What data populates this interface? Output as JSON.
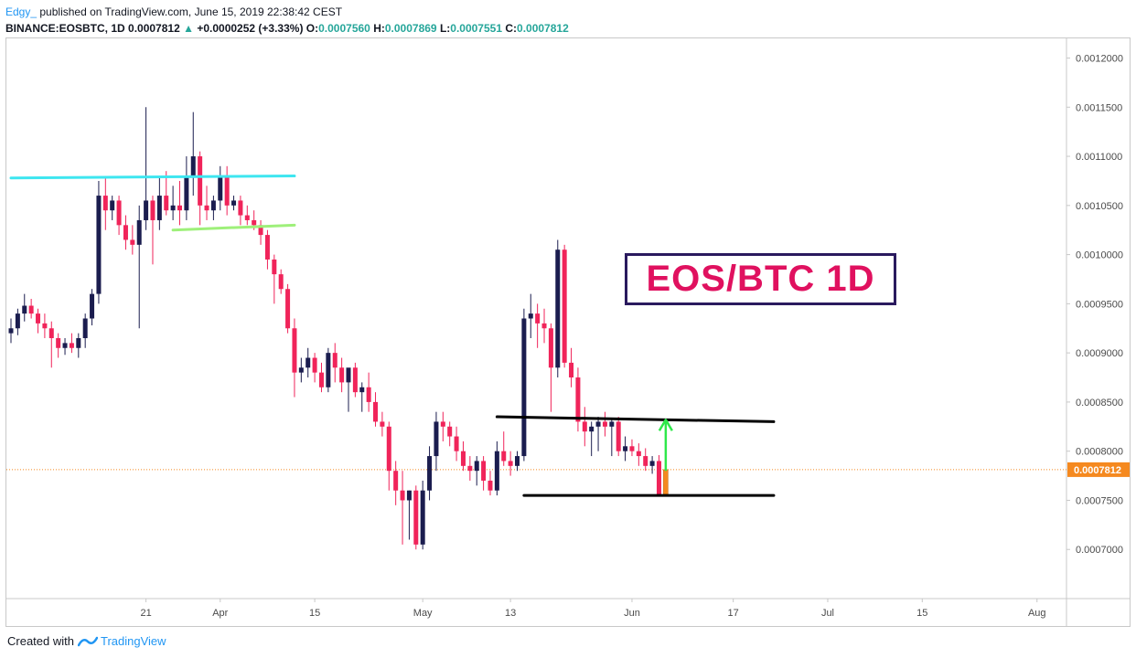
{
  "header": {
    "author": "Edgy_",
    "published": "published on TradingView.com, June 15, 2019 22:38:42 CEST",
    "symbol": "BINANCE:EOSBTC, 1D",
    "last": "0.0007812",
    "change": "+0.0000252 (+3.33%)",
    "o_label": "O:",
    "o_value": "0.0007560",
    "h_label": "H:",
    "h_value": "0.0007869",
    "l_label": "L:",
    "l_value": "0.0007551",
    "c_label": "C:",
    "c_value": "0.0007812"
  },
  "annotation_box": "EOS/BTC 1D",
  "footer": {
    "created_with": "Created with",
    "brand": "TradingView"
  },
  "colors": {
    "up_candle": "#1b1d4f",
    "down_candle": "#f0245a",
    "orange_candle": "#f5891f",
    "cyan_line": "#3ee6f0",
    "green_line": "#9ef07a",
    "black_line": "#000000",
    "green_arrow": "#2ee84a",
    "price_line": "#f5891f"
  },
  "chart_data": {
    "type": "candlestick",
    "y_ticks": [
      "0.0012000",
      "0.0011500",
      "0.0011000",
      "0.0010500",
      "0.0010000",
      "0.0009500",
      "0.0009000",
      "0.0008500",
      "0.0008000",
      "0.0007500",
      "0.0007000"
    ],
    "ylim": [
      0.00065,
      0.00122
    ],
    "x_ticks": [
      {
        "label": "21",
        "day": 20
      },
      {
        "label": "Apr",
        "day": 31
      },
      {
        "label": "15",
        "day": 45
      },
      {
        "label": "May",
        "day": 61
      },
      {
        "label": "13",
        "day": 74
      },
      {
        "label": "Jun",
        "day": 92
      },
      {
        "label": "17",
        "day": 107
      },
      {
        "label": "Jul",
        "day": 121
      },
      {
        "label": "15",
        "day": 135
      },
      {
        "label": "Aug",
        "day": 152
      }
    ],
    "current_price": "0.0007812",
    "candles": [
      [
        0.00092,
        0.000935,
        0.00091,
        0.000925
      ],
      [
        0.000925,
        0.000945,
        0.000918,
        0.00094
      ],
      [
        0.00094,
        0.00096,
        0.000932,
        0.000948
      ],
      [
        0.000948,
        0.000955,
        0.000935,
        0.00094
      ],
      [
        0.00094,
        0.000945,
        0.00092,
        0.00093
      ],
      [
        0.00093,
        0.00094,
        0.000915,
        0.000925
      ],
      [
        0.000925,
        0.000932,
        0.000885,
        0.000915
      ],
      [
        0.000915,
        0.00092,
        0.000895,
        0.000905
      ],
      [
        0.000905,
        0.000915,
        0.000898,
        0.00091
      ],
      [
        0.00091,
        0.00092,
        0.0009,
        0.000905
      ],
      [
        0.000905,
        0.00092,
        0.000895,
        0.000915
      ],
      [
        0.000915,
        0.00094,
        0.000905,
        0.000935
      ],
      [
        0.000935,
        0.000965,
        0.000928,
        0.00096
      ],
      [
        0.00096,
        0.001075,
        0.00095,
        0.00106
      ],
      [
        0.00106,
        0.00108,
        0.001025,
        0.001045
      ],
      [
        0.001045,
        0.00106,
        0.001035,
        0.001055
      ],
      [
        0.001055,
        0.00106,
        0.00102,
        0.00103
      ],
      [
        0.00103,
        0.00104,
        0.001005,
        0.001015
      ],
      [
        0.001015,
        0.00103,
        0.001,
        0.00101
      ],
      [
        0.00101,
        0.00105,
        0.000925,
        0.001035
      ],
      [
        0.001035,
        0.00115,
        0.001025,
        0.001055
      ],
      [
        0.001055,
        0.00106,
        0.00099,
        0.001035
      ],
      [
        0.001035,
        0.00108,
        0.001025,
        0.00106
      ],
      [
        0.00106,
        0.001085,
        0.00104,
        0.001045
      ],
      [
        0.001045,
        0.00107,
        0.001035,
        0.00105
      ],
      [
        0.00105,
        0.001075,
        0.00103,
        0.001045
      ],
      [
        0.001045,
        0.0011,
        0.001035,
        0.00108
      ],
      [
        0.00108,
        0.001145,
        0.00106,
        0.0011
      ],
      [
        0.0011,
        0.001105,
        0.00103,
        0.00105
      ],
      [
        0.00105,
        0.00107,
        0.001035,
        0.001045
      ],
      [
        0.001045,
        0.00106,
        0.001035,
        0.001055
      ],
      [
        0.001055,
        0.00109,
        0.001045,
        0.00108
      ],
      [
        0.00108,
        0.00109,
        0.00104,
        0.00105
      ],
      [
        0.00105,
        0.00106,
        0.001045,
        0.001055
      ],
      [
        0.001055,
        0.00106,
        0.00103,
        0.00104
      ],
      [
        0.00104,
        0.00105,
        0.00103,
        0.001035
      ],
      [
        0.001035,
        0.001045,
        0.001025,
        0.00103
      ],
      [
        0.00103,
        0.001035,
        0.00101,
        0.00102
      ],
      [
        0.00102,
        0.001025,
        0.000985,
        0.000995
      ],
      [
        0.000995,
        0.001,
        0.00095,
        0.00098
      ],
      [
        0.00098,
        0.000985,
        0.00096,
        0.000965
      ],
      [
        0.000965,
        0.00097,
        0.00092,
        0.000925
      ],
      [
        0.000925,
        0.000935,
        0.000855,
        0.00088
      ],
      [
        0.00088,
        0.000895,
        0.00087,
        0.000885
      ],
      [
        0.000885,
        0.000905,
        0.000875,
        0.000895
      ],
      [
        0.000895,
        0.0009,
        0.00087,
        0.00088
      ],
      [
        0.00088,
        0.00089,
        0.00086,
        0.000865
      ],
      [
        0.000865,
        0.000905,
        0.00086,
        0.0009
      ],
      [
        0.0009,
        0.00091,
        0.00087,
        0.000885
      ],
      [
        0.000885,
        0.000895,
        0.00086,
        0.00087
      ],
      [
        0.00087,
        0.00088,
        0.00084,
        0.000885
      ],
      [
        0.000885,
        0.00089,
        0.000855,
        0.00086
      ],
      [
        0.00086,
        0.00087,
        0.00084,
        0.000865
      ],
      [
        0.000865,
        0.00088,
        0.00084,
        0.00085
      ],
      [
        0.00085,
        0.00086,
        0.000825,
        0.00083
      ],
      [
        0.00083,
        0.00084,
        0.000815,
        0.000825
      ],
      [
        0.000825,
        0.00083,
        0.00076,
        0.00078
      ],
      [
        0.00078,
        0.00079,
        0.000745,
        0.00076
      ],
      [
        0.00076,
        0.00078,
        0.000705,
        0.00075
      ],
      [
        0.00075,
        0.00076,
        0.00071,
        0.00076
      ],
      [
        0.00076,
        0.000765,
        0.0007,
        0.000705
      ],
      [
        0.000705,
        0.00077,
        0.0007,
        0.00076
      ],
      [
        0.00076,
        0.000805,
        0.00075,
        0.000795
      ],
      [
        0.000795,
        0.00084,
        0.00078,
        0.00083
      ],
      [
        0.00083,
        0.00084,
        0.00081,
        0.000825
      ],
      [
        0.000825,
        0.00083,
        0.000805,
        0.000815
      ],
      [
        0.000815,
        0.000825,
        0.00079,
        0.0008
      ],
      [
        0.0008,
        0.00081,
        0.00078,
        0.000785
      ],
      [
        0.000785,
        0.000795,
        0.00077,
        0.00078
      ],
      [
        0.00078,
        0.000795,
        0.000765,
        0.00079
      ],
      [
        0.00079,
        0.000795,
        0.00076,
        0.00077
      ],
      [
        0.00077,
        0.00078,
        0.000755,
        0.00076
      ],
      [
        0.00076,
        0.00081,
        0.000755,
        0.0008
      ],
      [
        0.0008,
        0.00082,
        0.000785,
        0.00079
      ],
      [
        0.00079,
        0.0008,
        0.000775,
        0.000785
      ],
      [
        0.000785,
        0.0008,
        0.00078,
        0.000795
      ],
      [
        0.000795,
        0.000945,
        0.00079,
        0.000935
      ],
      [
        0.000935,
        0.00096,
        0.000915,
        0.00094
      ],
      [
        0.00094,
        0.00095,
        0.000905,
        0.00093
      ],
      [
        0.00093,
        0.000945,
        0.00091,
        0.000925
      ],
      [
        0.000925,
        0.00093,
        0.00084,
        0.000885
      ],
      [
        0.000885,
        0.001015,
        0.000875,
        0.001005
      ],
      [
        0.001005,
        0.00101,
        0.000885,
        0.00089
      ],
      [
        0.00089,
        0.000905,
        0.000865,
        0.000875
      ],
      [
        0.000875,
        0.000885,
        0.00082,
        0.00083
      ],
      [
        0.00083,
        0.000845,
        0.000805,
        0.00082
      ],
      [
        0.00082,
        0.00083,
        0.000795,
        0.000825
      ],
      [
        0.000825,
        0.000835,
        0.0008,
        0.00083
      ],
      [
        0.00083,
        0.00084,
        0.000815,
        0.000825
      ],
      [
        0.000825,
        0.000832,
        0.000795,
        0.00083
      ],
      [
        0.00083,
        0.000835,
        0.000795,
        0.0008
      ],
      [
        0.0008,
        0.000815,
        0.00079,
        0.000805
      ],
      [
        0.000805,
        0.000812,
        0.000795,
        0.0008
      ],
      [
        0.0008,
        0.000808,
        0.000785,
        0.000795
      ],
      [
        0.000795,
        0.000803,
        0.00078,
        0.000785
      ],
      [
        0.000785,
        0.000795,
        0.000777,
        0.00079
      ],
      [
        0.00079,
        0.000796,
        0.00076,
        0.000756
      ],
      [
        0.000756,
        0.0007869,
        0.0007551,
        0.0007812
      ]
    ],
    "lines": [
      {
        "name": "cyan-resistance",
        "from": [
          0,
          0.001078
        ],
        "to": [
          42,
          0.00108
        ]
      },
      {
        "name": "green-support",
        "from": [
          24,
          0.001025
        ],
        "to": [
          42,
          0.00103
        ]
      },
      {
        "name": "upper-range",
        "from": [
          72,
          0.000835
        ],
        "to": [
          113,
          0.00083
        ]
      },
      {
        "name": "lower-range",
        "from": [
          76,
          0.000755
        ],
        "to": [
          113,
          0.000755
        ]
      }
    ]
  }
}
